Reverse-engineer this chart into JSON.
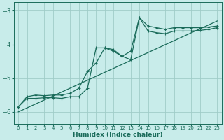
{
  "xlabel": "Humidex (Indice chaleur)",
  "ylabel": "",
  "bg_color": "#c8ecea",
  "line_color": "#1a6b5a",
  "grid_color": "#a0ccc8",
  "xlim": [
    -0.5,
    23.5
  ],
  "ylim": [
    -6.35,
    -2.75
  ],
  "yticks": [
    -6,
    -5,
    -4,
    -3
  ],
  "xticks": [
    0,
    1,
    2,
    3,
    4,
    5,
    6,
    7,
    8,
    9,
    10,
    11,
    12,
    13,
    14,
    15,
    16,
    17,
    18,
    19,
    20,
    21,
    22,
    23
  ],
  "line1_x": [
    0,
    1,
    2,
    3,
    4,
    5,
    6,
    7,
    8,
    9,
    10,
    11,
    12,
    13,
    14,
    15,
    16,
    17,
    18,
    19,
    20,
    21,
    22,
    23
  ],
  "line1_y": [
    -5.85,
    -5.6,
    -5.6,
    -5.58,
    -5.58,
    -5.6,
    -5.55,
    -5.55,
    -5.3,
    -4.1,
    -4.1,
    -4.15,
    -4.35,
    -4.2,
    -3.2,
    -3.45,
    -3.5,
    -3.55,
    -3.5,
    -3.5,
    -3.5,
    -3.5,
    -3.48,
    -3.45
  ],
  "line2_x": [
    0,
    1,
    2,
    3,
    4,
    5,
    6,
    7,
    8,
    9,
    10,
    11,
    12,
    13,
    14,
    15,
    16,
    17,
    18,
    19,
    20,
    21,
    22,
    23
  ],
  "line2_y": [
    -5.85,
    -5.55,
    -5.5,
    -5.52,
    -5.5,
    -5.5,
    -5.45,
    -5.3,
    -4.8,
    -4.55,
    -4.1,
    -4.2,
    -4.35,
    -4.45,
    -3.2,
    -3.6,
    -3.65,
    -3.68,
    -3.6,
    -3.6,
    -3.6,
    -3.58,
    -3.55,
    -3.5
  ],
  "line3_x": [
    0,
    23
  ],
  "line3_y": [
    -6.0,
    -3.3
  ]
}
